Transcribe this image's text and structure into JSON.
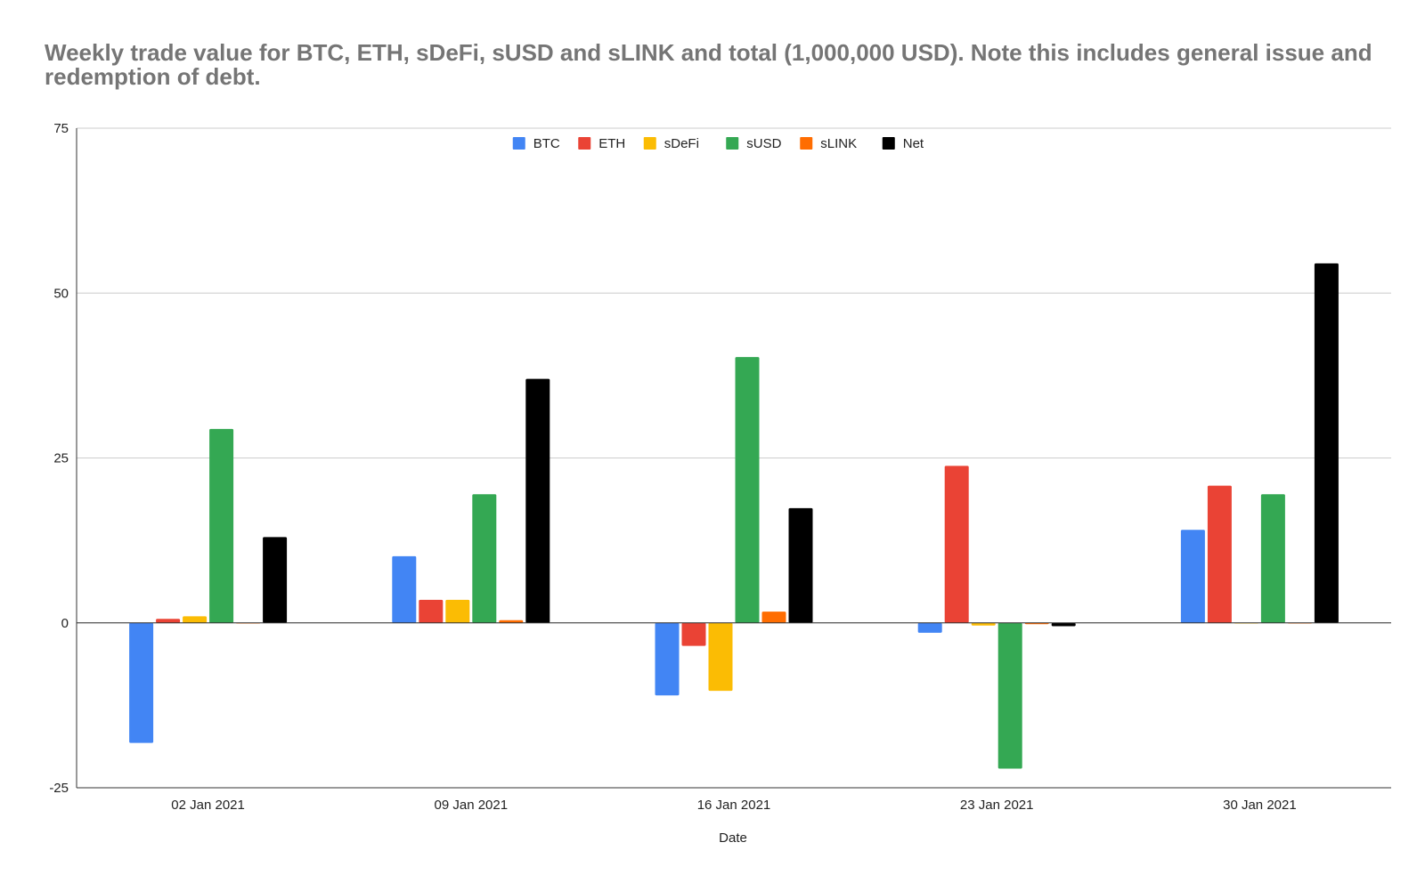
{
  "chart_data": {
    "type": "bar",
    "title": "Weekly trade value for BTC, ETH, sDeFi, sUSD and sLINK and total (1,000,000 USD). Note this includes general issue and redemption of debt.",
    "xlabel": "Date",
    "ylabel": "",
    "ylim": [
      -25,
      75
    ],
    "yticks": [
      "75",
      "50",
      "25",
      "0",
      "-25"
    ],
    "ytick_values": [
      75,
      50,
      25,
      0,
      -25
    ],
    "categories": [
      "02 Jan 2021",
      "09 Jan 2021",
      "16 Jan 2021",
      "23 Jan 2021",
      "30 Jan 2021"
    ],
    "grid": true,
    "legend_position": "top-center",
    "series": [
      {
        "name": "BTC",
        "color": "#4285f4",
        "values": [
          -18.2,
          10.1,
          -11.0,
          -1.5,
          14.1
        ]
      },
      {
        "name": "ETH",
        "color": "#ea4335",
        "values": [
          0.6,
          3.5,
          -3.5,
          23.8,
          20.8
        ]
      },
      {
        "name": "sDeFi",
        "color": "#fbbc04",
        "values": [
          1.0,
          3.5,
          -10.3,
          -0.4,
          -0.1
        ]
      },
      {
        "name": "sUSD",
        "color": "#34a853",
        "values": [
          29.4,
          19.5,
          40.3,
          -22.1,
          19.5
        ]
      },
      {
        "name": "sLINK",
        "color": "#ff6d01",
        "values": [
          0.0,
          0.4,
          1.7,
          -0.2,
          0.0
        ]
      },
      {
        "name": "Net",
        "color": "#000000",
        "values": [
          13.0,
          37.0,
          17.4,
          -0.5,
          54.5
        ]
      }
    ]
  }
}
